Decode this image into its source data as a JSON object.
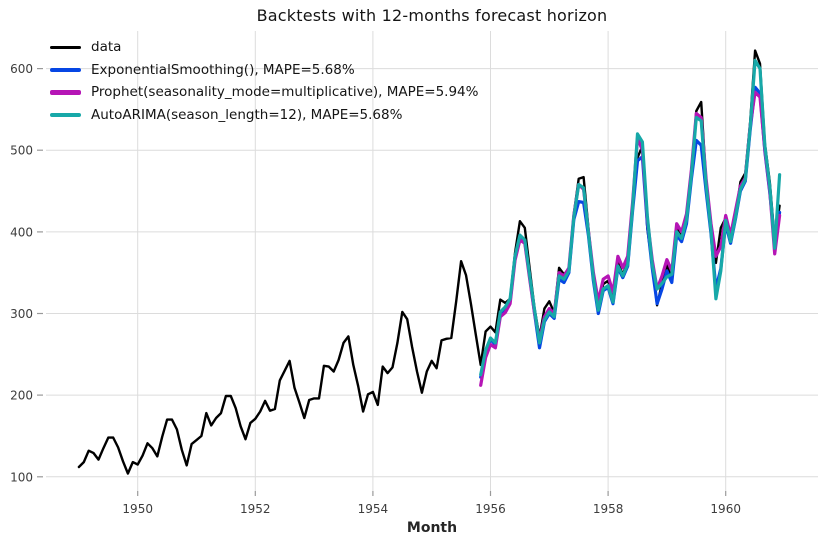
{
  "chart_data": {
    "type": "line",
    "title": "Backtests with 12-months forecast horizon",
    "xlabel": "Month",
    "ylabel": "",
    "grid": true,
    "legend_position": "upper left",
    "x_ticks": [
      1950,
      1952,
      1954,
      1956,
      1958,
      1960
    ],
    "y_ticks": [
      100,
      200,
      300,
      400,
      500,
      600
    ],
    "xlim": [
      1948.44,
      1961.57
    ],
    "ylim": [
      82.6,
      646.0
    ],
    "series": [
      {
        "id": "data",
        "name": "data",
        "color": "#000000",
        "width": 2.4,
        "start_year": 1949,
        "start_month": 1,
        "values": [
          112,
          118,
          132,
          129,
          121,
          135,
          148,
          148,
          136,
          119,
          104,
          118,
          115,
          126,
          141,
          135,
          125,
          149,
          170,
          170,
          158,
          133,
          114,
          140,
          145,
          150,
          178,
          163,
          172,
          178,
          199,
          199,
          184,
          162,
          146,
          166,
          171,
          180,
          193,
          181,
          183,
          218,
          230,
          242,
          209,
          191,
          172,
          194,
          196,
          196,
          236,
          235,
          229,
          243,
          264,
          272,
          237,
          211,
          180,
          201,
          204,
          188,
          235,
          227,
          234,
          264,
          302,
          293,
          259,
          229,
          203,
          229,
          242,
          233,
          267,
          269,
          270,
          315,
          364,
          347,
          312,
          274,
          237,
          278,
          284,
          277,
          317,
          313,
          318,
          374,
          413,
          405,
          355,
          306,
          271,
          306,
          315,
          301,
          356,
          348,
          355,
          422,
          465,
          467,
          404,
          347,
          305,
          336,
          340,
          318,
          362,
          348,
          363,
          435,
          491,
          505,
          404,
          359,
          310,
          337,
          360,
          342,
          406,
          396,
          420,
          472,
          548,
          559,
          463,
          407,
          362,
          405,
          417,
          391,
          419,
          461,
          472,
          535,
          622,
          606,
          508,
          461,
          390,
          432
        ]
      },
      {
        "id": "exponential-smoothing",
        "name": "ExponentialSmoothing(), MAPE=5.68%",
        "color": "#0646e4",
        "width": 3.2,
        "start_year": 1955,
        "start_month": 11,
        "values": [
          222,
          252,
          268,
          262,
          300,
          305,
          315,
          368,
          393,
          388,
          345,
          300,
          258,
          290,
          300,
          294,
          342,
          338,
          350,
          415,
          437,
          436,
          395,
          340,
          300,
          328,
          332,
          312,
          356,
          344,
          358,
          426,
          487,
          492,
          410,
          356,
          312,
          330,
          352,
          338,
          396,
          388,
          410,
          465,
          512,
          506,
          450,
          398,
          330,
          355,
          410,
          386,
          416,
          450,
          462,
          525,
          577,
          570,
          498,
          448,
          388,
          424
        ]
      },
      {
        "id": "prophet",
        "name": "Prophet(seasonality_mode=multiplicative), MAPE=5.94%",
        "color": "#b515b5",
        "width": 3.2,
        "start_year": 1955,
        "start_month": 11,
        "values": [
          212,
          246,
          262,
          258,
          296,
          301,
          312,
          365,
          390,
          386,
          342,
          300,
          268,
          296,
          306,
          300,
          350,
          346,
          356,
          420,
          458,
          452,
          400,
          350,
          315,
          342,
          346,
          326,
          370,
          356,
          370,
          436,
          515,
          500,
          416,
          366,
          330,
          346,
          366,
          352,
          410,
          400,
          422,
          476,
          545,
          540,
          465,
          410,
          370,
          382,
          420,
          396,
          426,
          456,
          466,
          530,
          571,
          565,
          500,
          450,
          373,
          420
        ]
      },
      {
        "id": "autoarima",
        "name": "AutoARIMA(season_length=12), MAPE=5.68%",
        "color": "#17a8a8",
        "width": 3.2,
        "start_year": 1955,
        "start_month": 11,
        "values": [
          225,
          255,
          270,
          264,
          302,
          308,
          318,
          370,
          396,
          390,
          346,
          304,
          264,
          292,
          302,
          296,
          346,
          342,
          352,
          418,
          458,
          454,
          398,
          344,
          304,
          330,
          334,
          314,
          358,
          346,
          360,
          430,
          520,
          510,
          420,
          360,
          330,
          337,
          345,
          348,
          400,
          392,
          415,
          470,
          540,
          536,
          458,
          402,
          318,
          352,
          414,
          388,
          418,
          452,
          464,
          528,
          610,
          600,
          505,
          455,
          380,
          470
        ]
      }
    ]
  }
}
